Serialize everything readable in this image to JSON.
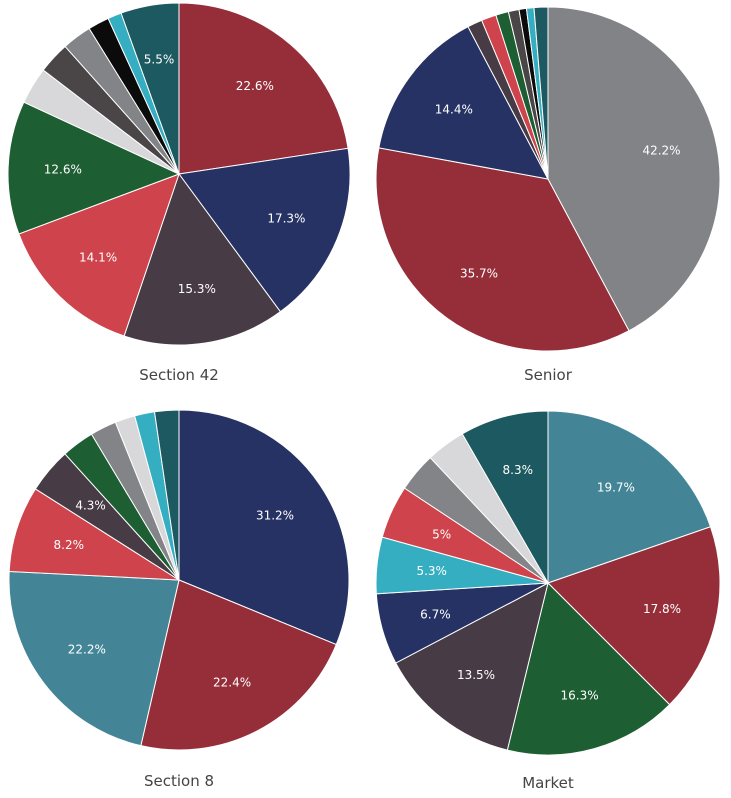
{
  "chart_data": [
    {
      "type": "pie",
      "title": "Section 42",
      "slices": [
        {
          "value": 22.6,
          "label": "22.6%",
          "color": "#962e3a"
        },
        {
          "value": 17.3,
          "label": "17.3%",
          "color": "#263264"
        },
        {
          "value": 15.3,
          "label": "15.3%",
          "color": "#473b45"
        },
        {
          "value": 14.1,
          "label": "14.1%",
          "color": "#ce434c"
        },
        {
          "value": 12.6,
          "label": "12.6%",
          "color": "#1e5e33"
        },
        {
          "value": 3.5,
          "label": "",
          "color": "#d8d8da"
        },
        {
          "value": 3.0,
          "label": "",
          "color": "#4a4547"
        },
        {
          "value": 2.8,
          "label": "",
          "color": "#838487"
        },
        {
          "value": 2.0,
          "label": "",
          "color": "#0b0b0b"
        },
        {
          "value": 1.3,
          "label": "",
          "color": "#34aec0"
        },
        {
          "value": 5.5,
          "label": "5.5%",
          "color": "#1c5960"
        }
      ]
    },
    {
      "type": "pie",
      "title": "Senior",
      "slices": [
        {
          "value": 42.2,
          "label": "42.2%",
          "color": "#828386"
        },
        {
          "value": 35.7,
          "label": "35.7%",
          "color": "#962e3a"
        },
        {
          "value": 14.4,
          "label": "14.4%",
          "color": "#263264"
        },
        {
          "value": 1.4,
          "label": "",
          "color": "#473b45"
        },
        {
          "value": 1.4,
          "label": "",
          "color": "#ce434c"
        },
        {
          "value": 1.2,
          "label": "",
          "color": "#1e5e33"
        },
        {
          "value": 1.0,
          "label": "",
          "color": "#4a4547"
        },
        {
          "value": 0.7,
          "label": "",
          "color": "#0b0b0b"
        },
        {
          "value": 0.7,
          "label": "",
          "color": "#34aec0"
        },
        {
          "value": 1.3,
          "label": "",
          "color": "#1c5960"
        }
      ]
    },
    {
      "type": "pie",
      "title": "Section 8",
      "slices": [
        {
          "value": 31.2,
          "label": "31.2%",
          "color": "#263264"
        },
        {
          "value": 22.4,
          "label": "22.4%",
          "color": "#962e3a"
        },
        {
          "value": 22.2,
          "label": "22.2%",
          "color": "#438596"
        },
        {
          "value": 8.2,
          "label": "8.2%",
          "color": "#ce434c"
        },
        {
          "value": 4.3,
          "label": "4.3%",
          "color": "#473b45"
        },
        {
          "value": 3.1,
          "label": "",
          "color": "#1e5e33"
        },
        {
          "value": 2.5,
          "label": "",
          "color": "#838487"
        },
        {
          "value": 1.9,
          "label": "",
          "color": "#d8d8da"
        },
        {
          "value": 1.9,
          "label": "",
          "color": "#34aec0"
        },
        {
          "value": 2.3,
          "label": "",
          "color": "#1c5960"
        }
      ]
    },
    {
      "type": "pie",
      "title": "Market",
      "slices": [
        {
          "value": 19.7,
          "label": "19.7%",
          "color": "#438596"
        },
        {
          "value": 17.8,
          "label": "17.8%",
          "color": "#962e3a"
        },
        {
          "value": 16.3,
          "label": "16.3%",
          "color": "#1e5e33"
        },
        {
          "value": 13.5,
          "label": "13.5%",
          "color": "#473b45"
        },
        {
          "value": 6.7,
          "label": "6.7%",
          "color": "#263264"
        },
        {
          "value": 5.3,
          "label": "5.3%",
          "color": "#34aec0"
        },
        {
          "value": 5.0,
          "label": "5%",
          "color": "#ce434c"
        },
        {
          "value": 3.7,
          "label": "",
          "color": "#838487"
        },
        {
          "value": 3.7,
          "label": "",
          "color": "#d8d8da"
        },
        {
          "value": 8.3,
          "label": "8.3%",
          "color": "#1c5960"
        }
      ]
    }
  ]
}
